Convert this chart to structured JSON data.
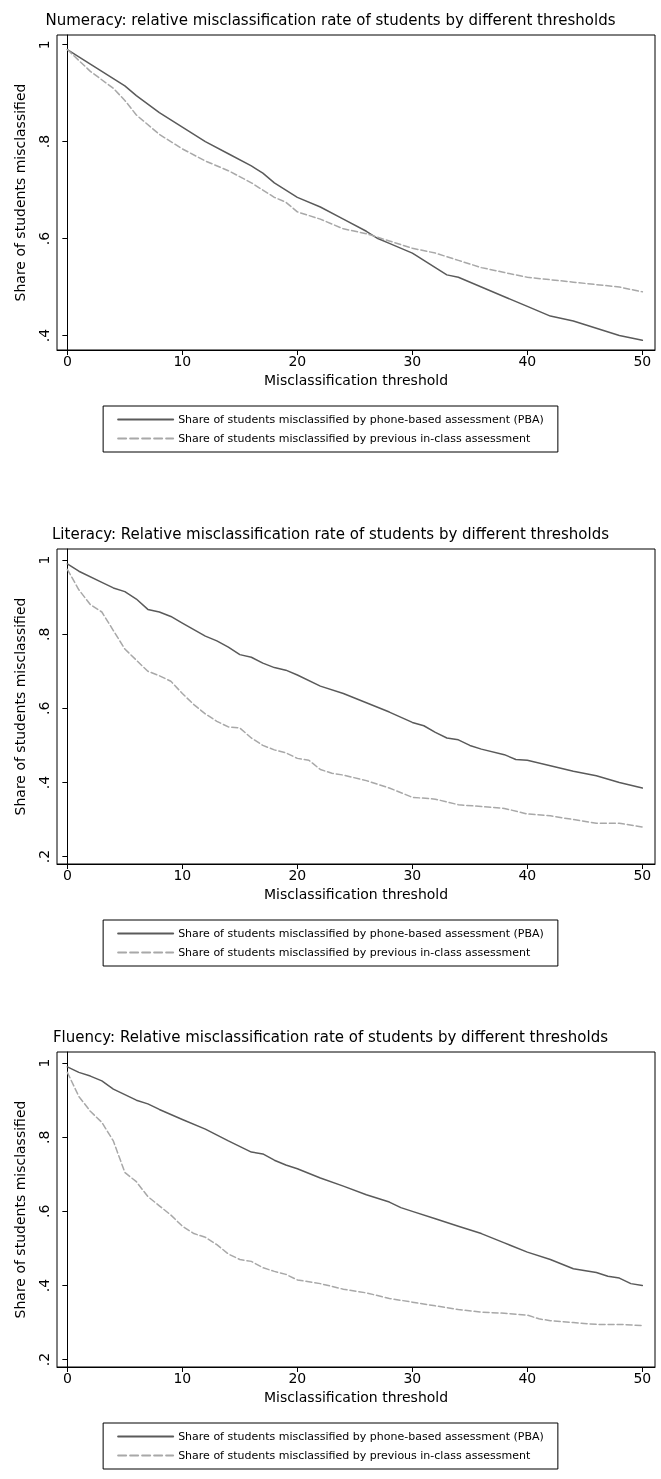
{
  "chart_data": [
    {
      "type": "line",
      "title": "Numeracy: relative misclassification rate of students by different thresholds",
      "xlabel": "Misclassification threshold",
      "ylabel": "Share of students misclassified",
      "xlim": [
        -0.9,
        51.1
      ],
      "xticks": [
        0,
        10,
        20,
        30,
        40,
        50
      ],
      "ylim": [
        0.37,
        1.02
      ],
      "yticks": [
        {
          "value": 0.4,
          "label": ".4"
        },
        {
          "value": 0.6,
          "label": ".6"
        },
        {
          "value": 0.8,
          "label": ".8"
        },
        {
          "value": 1,
          "label": "1"
        }
      ],
      "legend": "bottom",
      "marker": "none",
      "series": [
        {
          "name": "Share of students misclassified by phone-based assessment (PBA)",
          "color": "#5a5a5a",
          "line_style": "solid",
          "x": [
            0,
            2,
            4,
            5,
            6,
            8,
            10,
            12,
            14,
            16,
            17,
            18,
            20,
            22,
            24,
            26,
            27,
            28,
            30,
            32,
            33,
            34,
            36,
            38,
            40,
            42,
            44,
            46,
            48,
            50
          ],
          "values": [
            0.99,
            0.96,
            0.93,
            0.915,
            0.895,
            0.86,
            0.83,
            0.8,
            0.775,
            0.75,
            0.735,
            0.715,
            0.685,
            0.665,
            0.64,
            0.615,
            0.6,
            0.59,
            0.57,
            0.54,
            0.525,
            0.52,
            0.5,
            0.48,
            0.46,
            0.44,
            0.43,
            0.415,
            0.4,
            0.39
          ]
        },
        {
          "name": "Share of students misclassified by previous in-class assessment",
          "color": "#a8a8a8",
          "line_style": "dashed",
          "x": [
            0,
            2,
            4,
            5,
            6,
            8,
            10,
            12,
            14,
            16,
            17,
            18,
            19,
            20,
            22,
            24,
            26,
            28,
            30,
            32,
            34,
            36,
            38,
            40,
            42,
            44,
            46,
            48,
            50
          ],
          "values": [
            0.99,
            0.945,
            0.91,
            0.885,
            0.855,
            0.815,
            0.785,
            0.76,
            0.74,
            0.715,
            0.7,
            0.685,
            0.675,
            0.655,
            0.64,
            0.62,
            0.61,
            0.595,
            0.58,
            0.57,
            0.555,
            0.54,
            0.53,
            0.52,
            0.515,
            0.51,
            0.505,
            0.5,
            0.49
          ]
        }
      ]
    },
    {
      "type": "line",
      "title": "Literacy: Relative misclassification rate of students by different thresholds",
      "xlabel": "Misclassification threshold",
      "ylabel": "Share of students misclassified",
      "xlim": [
        -0.9,
        51.1
      ],
      "xticks": [
        0,
        10,
        20,
        30,
        40,
        50
      ],
      "ylim": [
        0.18,
        1.03
      ],
      "yticks": [
        {
          "value": 0.2,
          "label": ".2"
        },
        {
          "value": 0.4,
          "label": ".4"
        },
        {
          "value": 0.6,
          "label": ".6"
        },
        {
          "value": 0.8,
          "label": ".8"
        },
        {
          "value": 1,
          "label": "1"
        }
      ],
      "legend": "bottom",
      "marker": "none",
      "series": [
        {
          "name": "Share of students misclassified by phone-based assessment (PBA)",
          "color": "#5a5a5a",
          "line_style": "solid",
          "x": [
            0,
            1,
            3,
            4,
            5,
            6,
            7,
            8,
            9,
            10,
            12,
            13,
            14,
            15,
            16,
            17,
            18,
            19,
            20,
            22,
            24,
            26,
            28,
            30,
            31,
            32,
            33,
            34,
            35,
            36,
            38,
            39,
            40,
            42,
            44,
            46,
            48,
            50
          ],
          "values": [
            0.99,
            0.97,
            0.94,
            0.925,
            0.915,
            0.895,
            0.867,
            0.86,
            0.848,
            0.83,
            0.795,
            0.782,
            0.765,
            0.745,
            0.738,
            0.722,
            0.71,
            0.703,
            0.69,
            0.66,
            0.64,
            0.615,
            0.59,
            0.562,
            0.553,
            0.535,
            0.52,
            0.515,
            0.5,
            0.49,
            0.475,
            0.462,
            0.46,
            0.445,
            0.43,
            0.418,
            0.4,
            0.385
          ]
        },
        {
          "name": "Share of students misclassified by previous in-class assessment",
          "color": "#a8a8a8",
          "line_style": "dashed",
          "x": [
            0,
            1,
            2,
            3,
            4,
            5,
            6,
            7,
            8,
            9,
            10,
            11,
            12,
            13,
            14,
            15,
            16,
            17,
            18,
            19,
            20,
            21,
            22,
            23,
            24,
            26,
            28,
            30,
            32,
            34,
            36,
            38,
            40,
            42,
            44,
            46,
            48,
            50
          ],
          "values": [
            0.975,
            0.92,
            0.88,
            0.86,
            0.81,
            0.76,
            0.73,
            0.7,
            0.688,
            0.673,
            0.64,
            0.61,
            0.585,
            0.565,
            0.55,
            0.547,
            0.52,
            0.5,
            0.488,
            0.48,
            0.465,
            0.46,
            0.435,
            0.425,
            0.42,
            0.405,
            0.385,
            0.36,
            0.355,
            0.34,
            0.335,
            0.33,
            0.315,
            0.31,
            0.3,
            0.29,
            0.29,
            0.28
          ]
        }
      ]
    },
    {
      "type": "line",
      "title": "Fluency: Relative misclassification rate of students by different thresholds",
      "xlabel": "Misclassification threshold",
      "ylabel": "Share of students misclassified",
      "xlim": [
        -0.9,
        51.1
      ],
      "xticks": [
        0,
        10,
        20,
        30,
        40,
        50
      ],
      "ylim": [
        0.18,
        1.03
      ],
      "yticks": [
        {
          "value": 0.2,
          "label": ".2"
        },
        {
          "value": 0.4,
          "label": ".4"
        },
        {
          "value": 0.6,
          "label": ".6"
        },
        {
          "value": 0.8,
          "label": ".8"
        },
        {
          "value": 1,
          "label": "1"
        }
      ],
      "legend": "bottom",
      "marker": "none",
      "series": [
        {
          "name": "Share of students misclassified by phone-based assessment (PBA)",
          "color": "#5a5a5a",
          "line_style": "solid",
          "x": [
            0,
            1,
            2,
            3,
            4,
            5,
            6,
            7,
            8,
            10,
            12,
            14,
            16,
            17,
            18,
            19,
            20,
            22,
            24,
            26,
            28,
            29,
            30,
            32,
            34,
            36,
            38,
            40,
            42,
            44,
            46,
            47,
            48,
            49,
            50
          ],
          "values": [
            0.99,
            0.975,
            0.965,
            0.952,
            0.93,
            0.915,
            0.9,
            0.89,
            0.875,
            0.848,
            0.822,
            0.79,
            0.76,
            0.755,
            0.738,
            0.725,
            0.715,
            0.69,
            0.668,
            0.645,
            0.625,
            0.61,
            0.6,
            0.58,
            0.56,
            0.54,
            0.515,
            0.49,
            0.47,
            0.445,
            0.435,
            0.425,
            0.42,
            0.405,
            0.4
          ]
        },
        {
          "name": "Share of students misclassified by previous in-class assessment",
          "color": "#a8a8a8",
          "line_style": "dashed",
          "x": [
            0,
            1,
            2,
            3,
            4,
            5,
            6,
            7,
            8,
            9,
            10,
            11,
            12,
            13,
            14,
            15,
            16,
            17,
            18,
            19,
            20,
            22,
            24,
            26,
            28,
            30,
            32,
            34,
            36,
            38,
            40,
            41,
            42,
            44,
            46,
            48,
            50
          ],
          "values": [
            0.975,
            0.91,
            0.87,
            0.84,
            0.79,
            0.705,
            0.68,
            0.64,
            0.615,
            0.59,
            0.56,
            0.54,
            0.53,
            0.51,
            0.485,
            0.47,
            0.465,
            0.448,
            0.438,
            0.43,
            0.415,
            0.405,
            0.39,
            0.38,
            0.365,
            0.355,
            0.345,
            0.335,
            0.328,
            0.325,
            0.32,
            0.31,
            0.305,
            0.3,
            0.295,
            0.295,
            0.292
          ]
        }
      ]
    }
  ]
}
